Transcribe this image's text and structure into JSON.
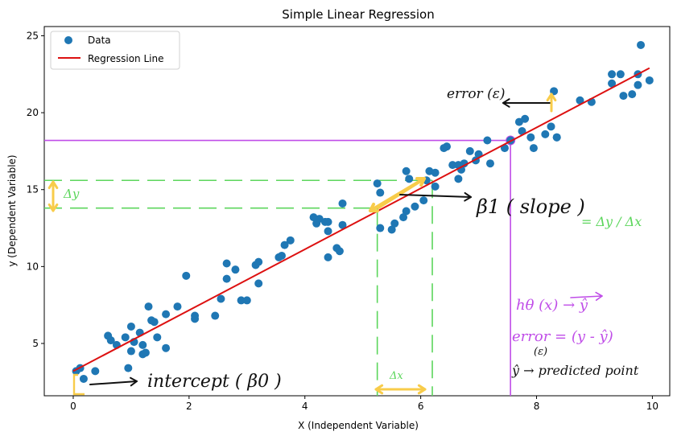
{
  "chart_data": {
    "type": "scatter",
    "title": "Simple Linear Regression",
    "xlabel": "X (Independent Variable)",
    "ylabel": "y (Dependent Variable)",
    "xlim": [
      -0.5,
      10.3
    ],
    "ylim": [
      1.6,
      25.6
    ],
    "xticks": [
      0,
      2,
      4,
      6,
      8,
      10
    ],
    "yticks": [
      5,
      10,
      15,
      20,
      25
    ],
    "grid": false,
    "legend_position": "top-left",
    "series": [
      {
        "name": "Data",
        "kind": "scatter",
        "color": "#1f77b4",
        "points": [
          [
            0.05,
            3.2
          ],
          [
            0.12,
            3.4
          ],
          [
            0.18,
            2.7
          ],
          [
            0.38,
            3.2
          ],
          [
            0.6,
            5.5
          ],
          [
            0.65,
            5.2
          ],
          [
            0.75,
            4.9
          ],
          [
            0.9,
            5.4
          ],
          [
            0.95,
            3.4
          ],
          [
            1.0,
            6.1
          ],
          [
            1.0,
            4.5
          ],
          [
            1.05,
            5.1
          ],
          [
            1.15,
            5.7
          ],
          [
            1.2,
            4.9
          ],
          [
            1.2,
            4.3
          ],
          [
            1.25,
            4.4
          ],
          [
            1.3,
            7.4
          ],
          [
            1.35,
            6.5
          ],
          [
            1.4,
            6.4
          ],
          [
            1.45,
            5.4
          ],
          [
            1.6,
            4.7
          ],
          [
            1.6,
            6.9
          ],
          [
            1.8,
            7.4
          ],
          [
            1.95,
            9.4
          ],
          [
            2.1,
            6.8
          ],
          [
            2.1,
            6.6
          ],
          [
            2.45,
            6.8
          ],
          [
            2.55,
            7.9
          ],
          [
            2.65,
            10.2
          ],
          [
            2.65,
            9.2
          ],
          [
            2.8,
            9.8
          ],
          [
            2.9,
            7.8
          ],
          [
            3.0,
            7.8
          ],
          [
            3.15,
            10.1
          ],
          [
            3.2,
            10.3
          ],
          [
            3.2,
            8.9
          ],
          [
            3.55,
            10.6
          ],
          [
            3.6,
            10.7
          ],
          [
            3.65,
            11.4
          ],
          [
            3.75,
            11.7
          ],
          [
            4.15,
            13.2
          ],
          [
            4.2,
            12.8
          ],
          [
            4.25,
            13.1
          ],
          [
            4.35,
            12.9
          ],
          [
            4.4,
            12.9
          ],
          [
            4.4,
            10.6
          ],
          [
            4.4,
            12.3
          ],
          [
            4.55,
            11.2
          ],
          [
            4.6,
            11.0
          ],
          [
            4.65,
            14.1
          ],
          [
            4.65,
            12.7
          ],
          [
            5.25,
            15.4
          ],
          [
            5.3,
            12.5
          ],
          [
            5.3,
            14.8
          ],
          [
            5.5,
            12.4
          ],
          [
            5.55,
            12.8
          ],
          [
            5.7,
            13.2
          ],
          [
            5.75,
            16.2
          ],
          [
            5.75,
            13.6
          ],
          [
            5.8,
            15.7
          ],
          [
            5.9,
            13.9
          ],
          [
            6.05,
            14.3
          ],
          [
            6.1,
            15.6
          ],
          [
            6.15,
            16.2
          ],
          [
            6.25,
            16.1
          ],
          [
            6.25,
            15.2
          ],
          [
            6.4,
            17.7
          ],
          [
            6.45,
            17.8
          ],
          [
            6.55,
            16.6
          ],
          [
            6.65,
            16.6
          ],
          [
            6.65,
            15.7
          ],
          [
            6.7,
            16.3
          ],
          [
            6.75,
            16.7
          ],
          [
            6.85,
            17.5
          ],
          [
            6.95,
            16.9
          ],
          [
            7.0,
            17.3
          ],
          [
            7.15,
            18.2
          ],
          [
            7.2,
            16.7
          ],
          [
            7.45,
            17.7
          ],
          [
            7.55,
            18.2
          ],
          [
            7.7,
            19.4
          ],
          [
            7.75,
            18.8
          ],
          [
            7.8,
            19.6
          ],
          [
            7.9,
            18.4
          ],
          [
            7.95,
            17.7
          ],
          [
            8.15,
            18.6
          ],
          [
            8.25,
            19.1
          ],
          [
            8.3,
            21.4
          ],
          [
            8.35,
            18.4
          ],
          [
            8.35,
            18.4
          ],
          [
            8.75,
            20.8
          ],
          [
            8.95,
            20.7
          ],
          [
            9.3,
            22.5
          ],
          [
            9.3,
            21.9
          ],
          [
            9.45,
            22.5
          ],
          [
            9.5,
            21.1
          ],
          [
            9.65,
            21.2
          ],
          [
            9.75,
            22.5
          ],
          [
            9.75,
            21.8
          ],
          [
            9.8,
            24.4
          ],
          [
            9.95,
            22.1
          ]
        ]
      },
      {
        "name": "Regression Line",
        "kind": "line",
        "color": "#dd1111",
        "x": [
          0.0,
          9.95
        ],
        "y": [
          3.2,
          22.9
        ]
      }
    ]
  },
  "annotations": {
    "intercept_label": "intercept ( β0 )",
    "slope_label": "β1 ( slope )",
    "slope_formula": "= Δy / Δx",
    "error_label": "error (ε)",
    "dy_label": "Δy",
    "dx_label": "Δx",
    "hypothesis_label": "hθ (x) → ŷ",
    "error_formula": "error = (y - ŷ)",
    "error_symbol": "(ε)",
    "predicted_label": "ŷ → predicted point"
  },
  "colors": {
    "scatter": "#1f77b4",
    "line": "#dd1111",
    "purple_guide": "#c04ee8",
    "green_guide": "#5cd65c",
    "yellow_arrow": "#f8cc4a"
  }
}
